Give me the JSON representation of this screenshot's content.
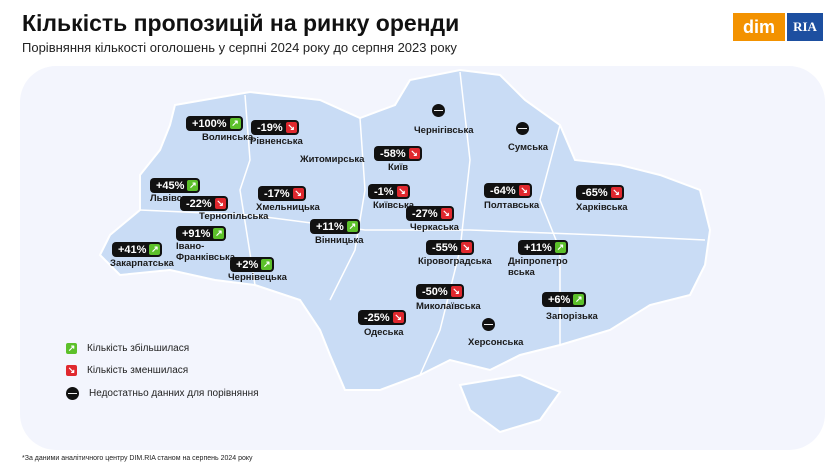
{
  "header": {
    "title": "Кількість пропозицій на ринку оренди",
    "subtitle": "Порівняння кількості оголошень у серпні 2024 року до серпня 2023 року"
  },
  "logo": {
    "dim": "dim",
    "ria": "RIA"
  },
  "regions": [
    {
      "name": "Волинська",
      "change": "+100%",
      "trend": "up"
    },
    {
      "name": "Рівненська",
      "change": "-19%",
      "trend": "down"
    },
    {
      "name": "Житомирська",
      "trend": "label"
    },
    {
      "name": "Чернігівська",
      "trend": "none"
    },
    {
      "name": "Сумська",
      "trend": "none"
    },
    {
      "name": "Київ",
      "change": "-58%",
      "trend": "down"
    },
    {
      "name": "Київська",
      "change": "-1%",
      "trend": "down"
    },
    {
      "name": "Полтавська",
      "change": "-64%",
      "trend": "down"
    },
    {
      "name": "Харківська",
      "change": "-65%",
      "trend": "down"
    },
    {
      "name": "Львівська",
      "change": "+45%",
      "trend": "up"
    },
    {
      "name": "Тернопільська",
      "change": "-22%",
      "trend": "down"
    },
    {
      "name": "Хмельницька",
      "change": "-17%",
      "trend": "down"
    },
    {
      "name": "Черкаська",
      "change": "-27%",
      "trend": "down"
    },
    {
      "name": "Вінницька",
      "change": "+11%",
      "trend": "up"
    },
    {
      "name": "Івано-Франківська",
      "change": "+91%",
      "trend": "up"
    },
    {
      "name": "Закарпатська",
      "change": "+41%",
      "trend": "up"
    },
    {
      "name": "Кіровоградська",
      "change": "-55%",
      "trend": "down"
    },
    {
      "name": "Дніпропетровська",
      "change": "+11%",
      "trend": "up"
    },
    {
      "name": "Чернівецька",
      "change": "+2%",
      "trend": "up"
    },
    {
      "name": "Миколаївська",
      "change": "-50%",
      "trend": "down"
    },
    {
      "name": "Запорізька",
      "change": "+6%",
      "trend": "up"
    },
    {
      "name": "Одеська",
      "change": "-25%",
      "trend": "down"
    },
    {
      "name": "Херсонська",
      "trend": "none"
    }
  ],
  "legend": [
    {
      "text": "Кількість збільшилася",
      "trend": "up"
    },
    {
      "text": "Кількість зменшилася",
      "trend": "down"
    },
    {
      "text": "Недостатньо данних для порівняння",
      "trend": "none"
    }
  ],
  "footnote": "*За даними аналітичного центру DIM.RIA станом на серпень 2024 року"
}
